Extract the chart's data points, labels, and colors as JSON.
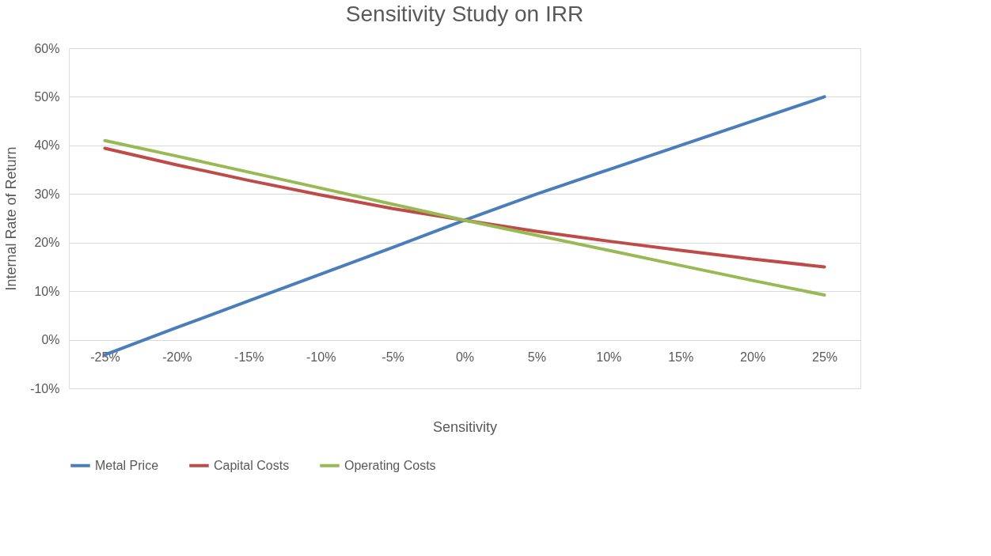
{
  "chart_data": {
    "type": "line",
    "title": "Sensitivity Study on IRR",
    "xlabel": "Sensitivity",
    "ylabel": "Internal Rate of Return",
    "categories": [
      "-25%",
      "-20%",
      "-15%",
      "-10%",
      "-5%",
      "0%",
      "5%",
      "10%",
      "15%",
      "20%",
      "25%"
    ],
    "series": [
      {
        "name": "Metal Price",
        "color": "#4a7ebb",
        "values": [
          -3.1,
          2.5,
          8,
          13.5,
          19,
          24.6,
          30,
          35,
          40,
          45,
          50
        ]
      },
      {
        "name": "Capital Costs",
        "color": "#be4b48",
        "values": [
          39.4,
          36,
          32.8,
          29.8,
          27,
          24.6,
          22.3,
          20.3,
          18.4,
          16.6,
          15
        ]
      },
      {
        "name": "Operating Costs",
        "color": "#98b954",
        "values": [
          41,
          37.8,
          34.5,
          31.2,
          27.9,
          24.6,
          21.5,
          18.4,
          15.3,
          12.2,
          9.2
        ]
      }
    ],
    "ylim": [
      -10,
      60
    ],
    "yticks": [
      {
        "value": -10,
        "label": "-10%"
      },
      {
        "value": 0,
        "label": "0%"
      },
      {
        "value": 10,
        "label": "10%"
      },
      {
        "value": 20,
        "label": "20%"
      },
      {
        "value": 30,
        "label": "30%"
      },
      {
        "value": 40,
        "label": "40%"
      },
      {
        "value": 50,
        "label": "50%"
      },
      {
        "value": 60,
        "label": "60%"
      }
    ],
    "grid": "y",
    "legend": "bottom",
    "marker": "none",
    "line_style": "solid"
  }
}
